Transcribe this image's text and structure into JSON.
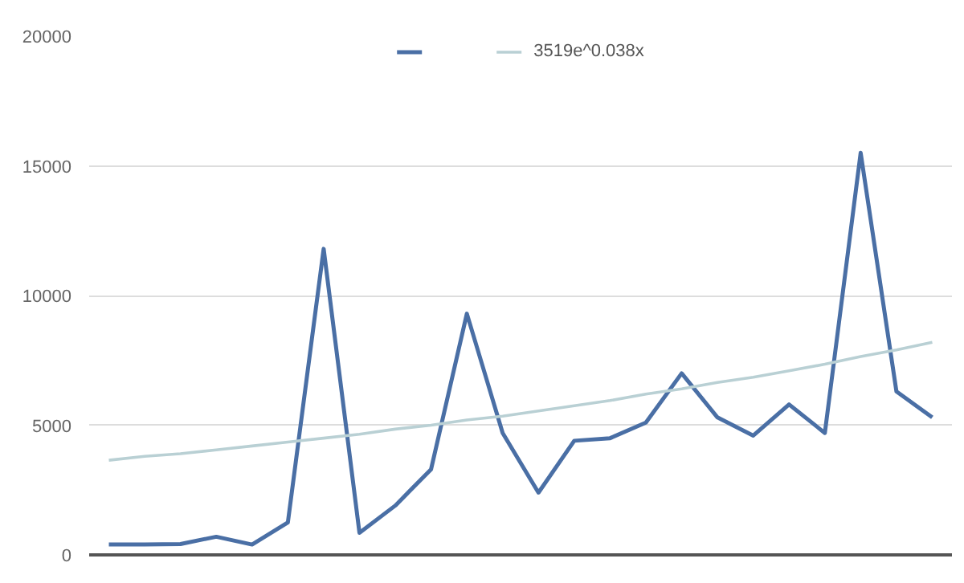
{
  "chart_data": {
    "type": "line",
    "categories": [
      null,
      null,
      null,
      null,
      null,
      null,
      null,
      null,
      null,
      null,
      null,
      null,
      null,
      null,
      null,
      null,
      null,
      null,
      null,
      null,
      null,
      null,
      null,
      null
    ],
    "ylim": [
      0,
      20000
    ],
    "yticks": [
      0,
      5000,
      10000,
      15000,
      20000
    ],
    "grid": "y",
    "legend": "top",
    "tick_labels": "y",
    "marker": "none",
    "line_style": "solid",
    "series": [
      {
        "color": "#4a6fa5",
        "values": [
          400,
          400,
          420,
          700,
          400,
          1250,
          11800,
          850,
          1900,
          3300,
          9300,
          4700,
          2400,
          4400,
          4500,
          5100,
          7000,
          5300,
          4600,
          5800,
          4700,
          15500,
          6300,
          5300
        ]
      },
      {
        "name": "3519e^0.038x",
        "color": "#b9d0d4",
        "values": [
          3650,
          3800,
          3900,
          4050,
          4200,
          4350,
          4500,
          4650,
          4850,
          5000,
          5200,
          5350,
          5550,
          5750,
          5950,
          6200,
          6400,
          6650,
          6850,
          7100,
          7350,
          7650,
          7900,
          8200
        ]
      }
    ]
  }
}
